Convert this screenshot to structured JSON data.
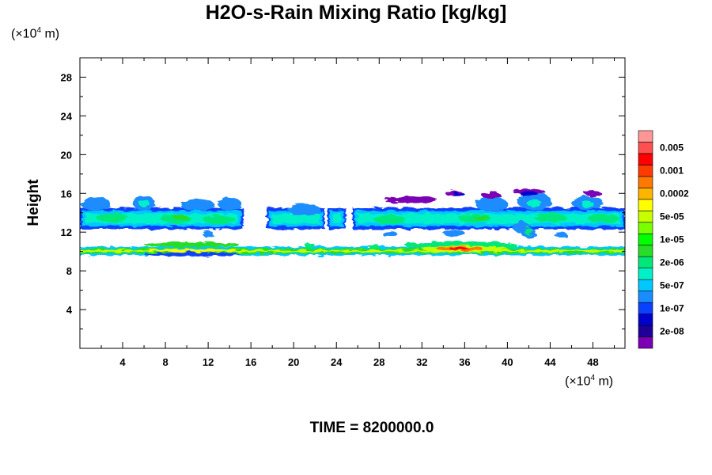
{
  "chart_data": {
    "type": "heatmap",
    "title": "H2O-s-Rain Mixing Ratio [kg/kg]",
    "ylabel": "Height",
    "x_unit": {
      "prefix": "(×10",
      "exp": "4",
      "suffix": " m)"
    },
    "y_unit": {
      "prefix": "(×10",
      "exp": "4",
      "suffix": " m)"
    },
    "xlim": [
      0,
      51
    ],
    "ylim": [
      0,
      30
    ],
    "x_ticks": [
      4,
      8,
      12,
      16,
      20,
      24,
      28,
      32,
      36,
      40,
      44,
      48
    ],
    "y_ticks": [
      4,
      8,
      12,
      16,
      20,
      24,
      28
    ],
    "x_minor_step": 2,
    "y_minor_step": 2,
    "time_label": "TIME = 8200000.0",
    "colorbar": {
      "colors": [
        "#7b00b4",
        "#1e0098",
        "#0000cc",
        "#0a40ff",
        "#1a8cff",
        "#00c8ff",
        "#00f0c8",
        "#00e87a",
        "#28dc28",
        "#00ff00",
        "#78ff00",
        "#c8ff00",
        "#ffff00",
        "#ffb400",
        "#ff7800",
        "#ff3c00",
        "#ff0000",
        "#ff5050",
        "#ff9696"
      ],
      "labels": [
        "2e-08",
        "1e-07",
        "5e-07",
        "2e-06",
        "1e-05",
        "5e-05",
        "0.0002",
        "0.001",
        "0.005"
      ],
      "label_band_index": [
        1,
        3,
        5,
        7,
        9,
        11,
        13,
        15,
        17
      ]
    },
    "layers": [
      {
        "name": "lower band",
        "y_center": 10.1,
        "thickness": 0.9,
        "dominant_level": "2e-06 to 0.001",
        "x_extent": [
          0,
          51
        ]
      },
      {
        "name": "upper band",
        "y_center": 13.5,
        "thickness": 2.2,
        "dominant_level": "5e-07 to 2e-06",
        "x_extent": [
          0,
          51
        ]
      },
      {
        "name": "sparse upper patches",
        "y_range": [
          14.5,
          16.5
        ],
        "dominant_level": "2e-08 to 1e-07",
        "x_extent": [
          30,
          48
        ]
      }
    ]
  }
}
